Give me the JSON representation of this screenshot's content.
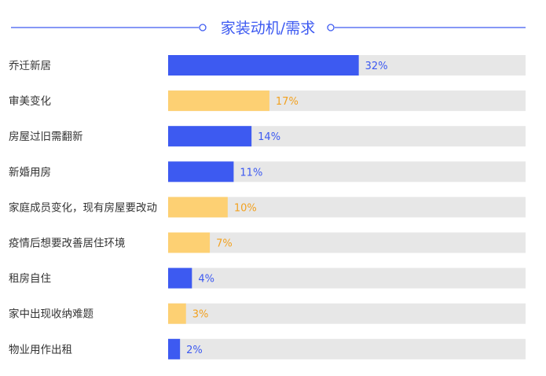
{
  "chart_data": {
    "type": "bar",
    "orientation": "horizontal",
    "title": "家装动机/需求",
    "categories": [
      "乔迁新居",
      "审美变化",
      "房屋过旧需翻新",
      "新婚用房",
      "家庭成员变化，现有房屋要改动",
      "疫情后想要改善居住环境",
      "租房自住",
      "家中出现收纳难题",
      "物业用作出租"
    ],
    "values": [
      32,
      17,
      14,
      11,
      10,
      7,
      4,
      3,
      2
    ],
    "value_labels": [
      "32%",
      "17%",
      "14%",
      "11%",
      "10%",
      "7%",
      "4%",
      "3%",
      "2%"
    ],
    "bar_colors": [
      "#3d5af1",
      "#fdd073",
      "#3d5af1",
      "#3d5af1",
      "#fdd073",
      "#fdd073",
      "#3d5af1",
      "#fdd073",
      "#3d5af1"
    ],
    "label_colors": [
      "#3d5af1",
      "#f2a11f",
      "#3d5af1",
      "#3d5af1",
      "#f2a11f",
      "#f2a11f",
      "#3d5af1",
      "#f2a11f",
      "#3d5af1"
    ],
    "xlim": [
      0,
      60
    ],
    "track_color": "#e7e7e7",
    "title_color": "#3d5af1",
    "category_label_color": "#333333",
    "grid": false,
    "legend": "none"
  }
}
